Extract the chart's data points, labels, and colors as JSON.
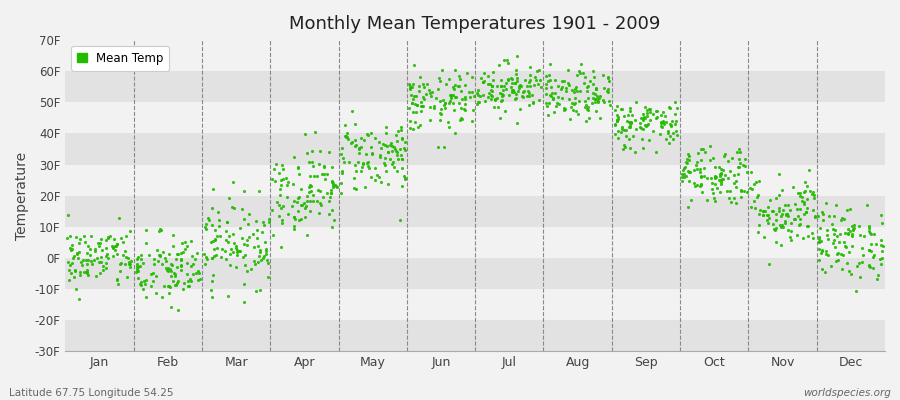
{
  "title": "Monthly Mean Temperatures 1901 - 2009",
  "ylabel": "Temperature",
  "xlabel_bottom_left": "Latitude 67.75 Longitude 54.25",
  "xlabel_bottom_right": "worldspecies.org",
  "legend_label": "Mean Temp",
  "dot_color": "#22bb00",
  "background_color": "#f2f2f2",
  "plot_bg_light": "#f2f2f2",
  "plot_bg_dark": "#e2e2e2",
  "ylim": [
    -30,
    70
  ],
  "yticks": [
    -30,
    -20,
    -10,
    0,
    10,
    20,
    30,
    40,
    50,
    60,
    70
  ],
  "ytick_labels": [
    "-30F",
    "-20F",
    "-10F",
    "0F",
    "10F",
    "20F",
    "30F",
    "40F",
    "50F",
    "60F",
    "70F"
  ],
  "months": [
    "Jan",
    "Feb",
    "Mar",
    "Apr",
    "May",
    "Jun",
    "Jul",
    "Aug",
    "Sep",
    "Oct",
    "Nov",
    "Dec"
  ],
  "seed": 42,
  "n_years": 109,
  "monthly_means_F": [
    0,
    -4,
    5,
    22,
    33,
    50,
    55,
    52,
    43,
    27,
    15,
    5
  ],
  "monthly_spreads_F": [
    5,
    6,
    7,
    7,
    6,
    5,
    4,
    4,
    4,
    5,
    6,
    6
  ]
}
